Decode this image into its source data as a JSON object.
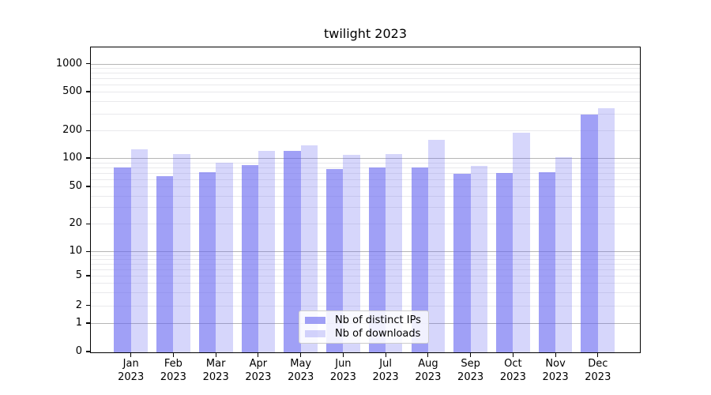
{
  "chart_data": {
    "type": "bar",
    "title": "twilight 2023",
    "categories": [
      "Jan\n2023",
      "Feb\n2023",
      "Mar\n2023",
      "Apr\n2023",
      "May\n2023",
      "Jun\n2023",
      "Jul\n2023",
      "Aug\n2023",
      "Sep\n2023",
      "Oct\n2023",
      "Nov\n2023",
      "Dec\n2023"
    ],
    "series": [
      {
        "name": "Nb of distinct IPs",
        "base_color": "#6666f0",
        "alpha": 0.62,
        "values": [
          80,
          64,
          71,
          84,
          121,
          77,
          80,
          80,
          68,
          69,
          71,
          291
        ]
      },
      {
        "name": "Nb of downloads",
        "base_color": "#6666f0",
        "alpha": 0.27,
        "values": [
          124,
          110,
          89,
          121,
          138,
          109,
          110,
          160,
          83,
          189,
          102,
          340
        ]
      }
    ],
    "yscale": "symlog",
    "y_ticks": [
      0,
      1,
      2,
      5,
      10,
      20,
      50,
      100,
      200,
      500,
      1000
    ],
    "y_major_grid_ticks": [
      1,
      10,
      100,
      1000
    ],
    "ylim": [
      0,
      1500
    ],
    "grid": true,
    "legend_position": "lower center",
    "colors": {
      "bar_dark_effective": "#a0a0f6",
      "bar_light_effective": "#d6d6fb",
      "major_grid": "#b5b5b5",
      "minor_grid": "#e9e9ec",
      "spine": "#000000"
    }
  },
  "legend": {
    "items": [
      {
        "label": "Nb of distinct IPs"
      },
      {
        "label": "Nb of downloads"
      }
    ]
  }
}
